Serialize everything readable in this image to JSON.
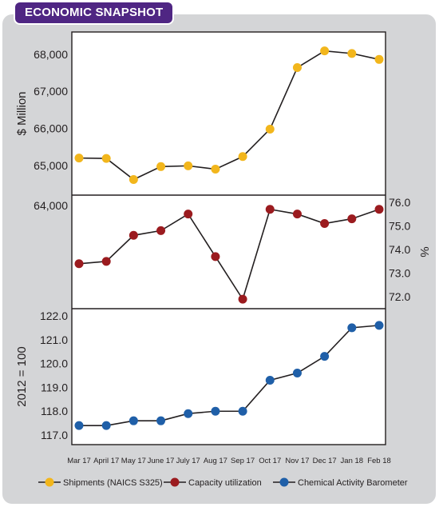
{
  "header": {
    "title": "ECONOMIC SNAPSHOT"
  },
  "chart_data": {
    "type": "line",
    "categories": [
      "Mar 17",
      "April 17",
      "May 17",
      "June 17",
      "July 17",
      "Aug 17",
      "Sep 17",
      "Oct 17",
      "Nov 17",
      "Dec 17",
      "Jan 18",
      "Feb 18"
    ],
    "panels": [
      {
        "series": [
          {
            "name": "Shipments (NAICS S325)",
            "color": "#f2b61c",
            "values": [
              65200,
              65190,
              64620,
              64970,
              64990,
              64900,
              65240,
              65980,
              67640,
              68090,
              68020,
              67860
            ]
          }
        ],
        "ylabel": "$ Million",
        "yticks": [
          65000,
          66000,
          67000,
          68000
        ],
        "ytick_labels": [
          "65,000",
          "66,000",
          "67,000",
          "68,000"
        ],
        "ylim": [
          64200,
          68600
        ],
        "ylabel_right": "",
        "yticks_right": []
      },
      {
        "series": [
          {
            "name": "Capacity utilization",
            "color": "#9b1b1f",
            "values": [
              73.4,
              73.5,
              74.6,
              74.8,
              75.5,
              73.7,
              71.9,
              75.7,
              75.5,
              75.1,
              75.3,
              75.7
            ]
          }
        ],
        "ylabel": "%",
        "yticks": [
          72.0,
          73.0,
          74.0,
          75.0,
          76.0
        ],
        "ytick_labels": [
          "72.0",
          "73.0",
          "74.0",
          "75.0",
          "76.0"
        ],
        "ylim": [
          71.5,
          76.3
        ],
        "left_tick_label": "64,000"
      },
      {
        "series": [
          {
            "name": "Chemical Activity Barometer",
            "color": "#1f5fa8",
            "values": [
              117.4,
              117.4,
              117.6,
              117.6,
              117.9,
              118.0,
              118.0,
              119.3,
              119.6,
              120.3,
              121.5,
              121.6
            ]
          }
        ],
        "ylabel": "2012 = 100",
        "yticks": [
          117,
          118,
          119,
          120,
          121,
          122
        ],
        "ytick_labels": [
          "117.0",
          "118.0",
          "119.0",
          "120.0",
          "121.0",
          "122.0"
        ],
        "ylim": [
          116.6,
          122.3
        ]
      }
    ],
    "legend": {
      "position": "bottom",
      "items": [
        {
          "label": "Shipments (NAICS S325)",
          "color": "#f2b61c"
        },
        {
          "label": "Capacity utilization",
          "color": "#9b1b1f"
        },
        {
          "label": "Chemical Activity Barometer",
          "color": "#1f5fa8"
        }
      ]
    },
    "grid": false
  }
}
